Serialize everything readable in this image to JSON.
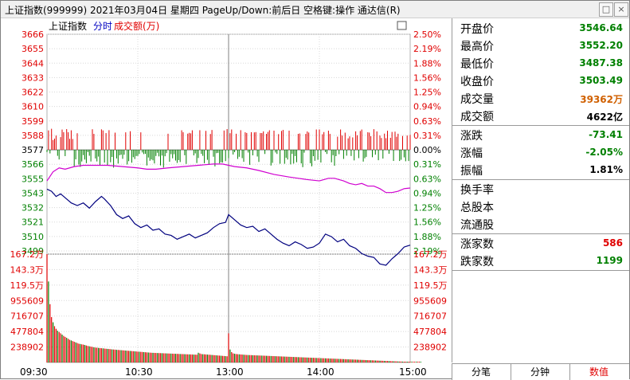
{
  "window": {
    "title": "上证指数(999999)  2021年03月04日 星期四 PageUp/Down:前后日 空格键:操作 通达信(R)",
    "max_glyph": "□",
    "close_glyph": "×"
  },
  "chart_header": {
    "index_name": "上证指数",
    "mode_label": "分时",
    "volume_label": "成交额(万)",
    "chevron_glyph": "▭"
  },
  "price_axis_labels": [
    "3666",
    "3655",
    "3644",
    "3633",
    "3622",
    "3610",
    "3599",
    "3588",
    "3577",
    "3566",
    "3555",
    "3543",
    "3532",
    "3521",
    "3510",
    "3499"
  ],
  "pct_axis_labels": [
    "2.50%",
    "2.19%",
    "1.88%",
    "1.56%",
    "1.25%",
    "0.94%",
    "0.63%",
    "0.31%",
    "0.00%",
    "0.31%",
    "0.63%",
    "0.94%",
    "1.25%",
    "1.56%",
    "1.88%",
    "2.19%"
  ],
  "volume_axis_labels": [
    "167.2万",
    "143.3万",
    "119.5万",
    "955609",
    "716707",
    "477804",
    "238902"
  ],
  "time_labels": [
    "09:30",
    "10:30",
    "13:00",
    "14:00",
    "15:00"
  ],
  "colors": {
    "up": "#e00000",
    "down": "#008000",
    "price_line": "#00007f",
    "avg_line": "#d000d0",
    "grid": "#b0b0b0",
    "value_green": "#008000",
    "value_red": "#e00000",
    "value_orange": "#d06000"
  },
  "stats": [
    {
      "label": "开盘价",
      "value": "3546.64",
      "color": "#008000"
    },
    {
      "label": "最高价",
      "value": "3552.20",
      "color": "#008000"
    },
    {
      "label": "最低价",
      "value": "3487.38",
      "color": "#008000"
    },
    {
      "label": "收盘价",
      "value": "3503.49",
      "color": "#008000"
    },
    {
      "label": "成交量",
      "value": "39362万",
      "color": "#d06000"
    },
    {
      "label": "成交额",
      "value": "4622亿",
      "color": "#000000"
    },
    {
      "label": "涨跌",
      "value": "-73.41",
      "color": "#008000"
    },
    {
      "label": "涨幅",
      "value": "-2.05%",
      "color": "#008000"
    },
    {
      "label": "振幅",
      "value": "1.81%",
      "color": "#000000"
    },
    {
      "label": "换手率",
      "value": "",
      "color": "#000000"
    },
    {
      "label": "总股本",
      "value": "",
      "color": "#000000"
    },
    {
      "label": "流通股",
      "value": "",
      "color": "#000000"
    },
    {
      "label": "涨家数",
      "value": "586",
      "color": "#e00000"
    },
    {
      "label": "跌家数",
      "value": "1199",
      "color": "#008000"
    }
  ],
  "bottom_tabs": [
    {
      "label": "分笔",
      "color": "#000000"
    },
    {
      "label": "分钟",
      "color": "#000000"
    },
    {
      "label": "数值",
      "color": "#e00000"
    }
  ],
  "chart_data": {
    "type": "line",
    "previous_close": 3577,
    "price_range": [
      3499,
      3666
    ],
    "x_range": [
      0,
      240
    ],
    "series": [
      {
        "values": [
          [
            0,
            3546.6
          ],
          [
            3,
            3545
          ],
          [
            6,
            3541
          ],
          [
            9,
            3543
          ],
          [
            12,
            3540
          ],
          [
            16,
            3536
          ],
          [
            20,
            3534
          ],
          [
            24,
            3536
          ],
          [
            28,
            3532
          ],
          [
            32,
            3537
          ],
          [
            36,
            3541
          ],
          [
            38,
            3539
          ],
          [
            42,
            3534
          ],
          [
            46,
            3527
          ],
          [
            50,
            3524
          ],
          [
            54,
            3526
          ],
          [
            58,
            3520
          ],
          [
            62,
            3517
          ],
          [
            66,
            3519
          ],
          [
            70,
            3515
          ],
          [
            74,
            3516
          ],
          [
            78,
            3512
          ],
          [
            82,
            3511
          ],
          [
            86,
            3508
          ],
          [
            90,
            3510
          ],
          [
            94,
            3512
          ],
          [
            98,
            3509
          ],
          [
            102,
            3511
          ],
          [
            106,
            3513
          ],
          [
            110,
            3517
          ],
          [
            114,
            3520
          ],
          [
            118,
            3521
          ],
          [
            120,
            3527
          ],
          [
            124,
            3523
          ],
          [
            128,
            3519
          ],
          [
            132,
            3517
          ],
          [
            136,
            3518
          ],
          [
            140,
            3514
          ],
          [
            144,
            3516
          ],
          [
            148,
            3512
          ],
          [
            152,
            3508
          ],
          [
            156,
            3505
          ],
          [
            160,
            3503
          ],
          [
            164,
            3506
          ],
          [
            168,
            3504
          ],
          [
            172,
            3501
          ],
          [
            176,
            3502
          ],
          [
            180,
            3505
          ],
          [
            184,
            3512
          ],
          [
            188,
            3510
          ],
          [
            192,
            3506
          ],
          [
            196,
            3508
          ],
          [
            200,
            3503
          ],
          [
            204,
            3501
          ],
          [
            208,
            3497
          ],
          [
            212,
            3495
          ],
          [
            216,
            3494
          ],
          [
            220,
            3489
          ],
          [
            224,
            3488
          ],
          [
            228,
            3493
          ],
          [
            232,
            3497
          ],
          [
            236,
            3502
          ],
          [
            240,
            3503.5
          ]
        ]
      },
      {
        "values": [
          [
            0,
            3553
          ],
          [
            4,
            3560
          ],
          [
            8,
            3563
          ],
          [
            12,
            3562
          ],
          [
            18,
            3564
          ],
          [
            24,
            3565
          ],
          [
            30,
            3565
          ],
          [
            40,
            3565
          ],
          [
            50,
            3564
          ],
          [
            60,
            3563
          ],
          [
            66,
            3562
          ],
          [
            72,
            3562
          ],
          [
            80,
            3563
          ],
          [
            90,
            3564
          ],
          [
            100,
            3565
          ],
          [
            110,
            3566
          ],
          [
            116,
            3566
          ],
          [
            124,
            3564
          ],
          [
            132,
            3563
          ],
          [
            140,
            3561
          ],
          [
            150,
            3558
          ],
          [
            160,
            3556
          ],
          [
            166,
            3555
          ],
          [
            172,
            3554
          ],
          [
            180,
            3553
          ],
          [
            186,
            3555
          ],
          [
            190,
            3555
          ],
          [
            196,
            3553
          ],
          [
            200,
            3551
          ],
          [
            204,
            3550
          ],
          [
            208,
            3551
          ],
          [
            212,
            3549
          ],
          [
            216,
            3549
          ],
          [
            220,
            3547
          ],
          [
            224,
            3544
          ],
          [
            228,
            3544
          ],
          [
            232,
            3545
          ],
          [
            236,
            3547
          ],
          [
            240,
            3547.5
          ]
        ]
      }
    ],
    "volume_range": [
      0,
      1672000
    ],
    "volume_sample": [
      1672000,
      1250000,
      900000,
      700000,
      620000,
      560000,
      520000,
      490000,
      470000,
      450000,
      430000,
      410000,
      395000,
      380000,
      365000,
      350000,
      340000,
      330000,
      320000,
      310000,
      300000,
      290000,
      285000,
      280000,
      275000,
      270000,
      262000,
      255000,
      250000,
      245000,
      240000,
      235000,
      230000,
      228000,
      225000,
      222000,
      220000,
      218000,
      215000,
      212000,
      210000,
      208000,
      205000,
      202000,
      200000,
      198000,
      196000,
      194000,
      192000,
      190000,
      188000,
      186000,
      184000,
      182000,
      180000,
      178000,
      176000,
      174000,
      172000,
      170000,
      168000,
      166000,
      164000,
      162000,
      160000,
      158000,
      156000,
      154000,
      152000,
      150000,
      149000,
      148000,
      147000,
      146000,
      145000,
      144000,
      143000,
      142000,
      141000,
      140000,
      139000,
      138000,
      137000,
      136000,
      135000,
      134000,
      133000,
      132000,
      131000,
      130000,
      129000,
      128000,
      127000,
      126000,
      125000,
      124000,
      123000,
      122000,
      121000,
      120000,
      150000,
      140000,
      130000,
      128000,
      126000,
      124000,
      122000,
      120000,
      118000,
      116000,
      114000,
      112000,
      110000,
      108000,
      106000,
      104000,
      102000,
      100000,
      98000,
      96000,
      450000,
      200000,
      160000,
      140000,
      135000,
      130000,
      128000,
      126000,
      124000,
      122000,
      120000,
      118000,
      116000,
      115000,
      114000,
      113000,
      112000,
      111000,
      110000,
      109000,
      108000,
      107000,
      106000,
      105000,
      104000,
      103000,
      102000,
      101000,
      100000,
      99000,
      98000,
      97000,
      96000,
      95000,
      94000,
      93000,
      92000,
      91000,
      90000,
      89000,
      88000,
      87000,
      86000,
      85000,
      84000,
      83000,
      82000,
      81000,
      80000,
      79000,
      78000,
      77000,
      76000,
      75000,
      74000,
      73000,
      72000,
      71000,
      70000,
      69000,
      68000,
      67000,
      66000,
      65000,
      64000,
      63000,
      62000,
      61000,
      60000,
      59000,
      58000,
      57000,
      56000,
      55000,
      54000,
      53000,
      52000,
      51000,
      50000,
      49000,
      48000,
      47000,
      46000,
      45000,
      44000,
      43000,
      42000,
      41000,
      40000,
      39000,
      38000,
      37000,
      36000,
      35000,
      34000,
      33000,
      32000,
      31000,
      30000,
      29000,
      28000,
      27000,
      26000,
      25000,
      24000,
      23000,
      22000,
      21000,
      20000,
      19000,
      18000,
      17000,
      16000,
      15000,
      14000,
      13000,
      12000,
      11000,
      10000,
      9000,
      8000,
      7000,
      6000,
      5000,
      4000,
      3000,
      2000,
      1000
    ]
  }
}
